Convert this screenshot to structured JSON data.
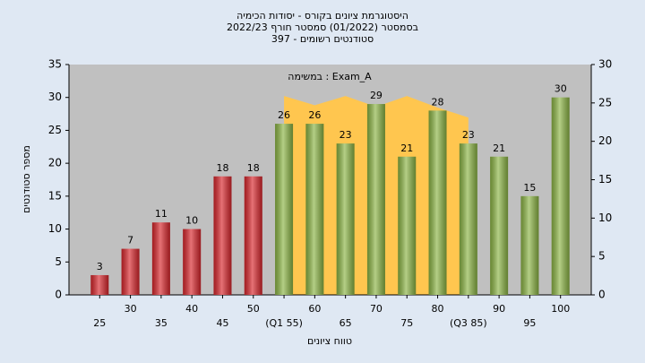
{
  "chart_data": {
    "type": "bar",
    "title": [
      "היסטוגרמת ציונים בקורס - יסודות הכימיה",
      "בסמסטר (01/2022) סמסטר חורף 2022/23",
      "397 - סטודנטים רשומים"
    ],
    "annotation": "במשימה : Exam_A",
    "x_label": "טווח ציונים",
    "y_label": "מספר סטודנטים",
    "categories": [
      "25",
      "30",
      "35",
      "40",
      "45",
      "50",
      "(Q1 55)",
      "60",
      "65",
      "70",
      "75",
      "80",
      "(Q3 85)",
      "90",
      "95",
      "100"
    ],
    "xlim": [
      20,
      105
    ],
    "ylim": [
      0,
      35
    ],
    "yticks": [
      0,
      5,
      10,
      15,
      20,
      25,
      30,
      35
    ],
    "y2lim": [
      0,
      30
    ],
    "y2ticks": [
      0,
      5,
      10,
      15,
      20,
      25,
      30
    ],
    "series": [
      {
        "values": [
          3,
          7,
          11,
          10,
          18,
          18,
          26,
          26,
          23,
          29,
          21,
          28,
          23,
          21,
          15,
          30
        ],
        "colors": [
          "#d9262c",
          "#d9262c",
          "#d9262c",
          "#d9262c",
          "#d9262c",
          "#d9262c",
          "#8cb545",
          "#8cb545",
          "#8cb545",
          "#8cb545",
          "#8cb545",
          "#8cb545",
          "#8cb545",
          "#8cb545",
          "#8cb545",
          "#8cb545"
        ]
      },
      {
        "type": "area",
        "axis": "y2",
        "color": "#ffc64f",
        "x": [
          55,
          60,
          65,
          70,
          75,
          80,
          85
        ],
        "values": [
          25.9,
          24.7,
          25.9,
          24.5,
          25.9,
          24.4,
          23.1
        ]
      }
    ]
  }
}
